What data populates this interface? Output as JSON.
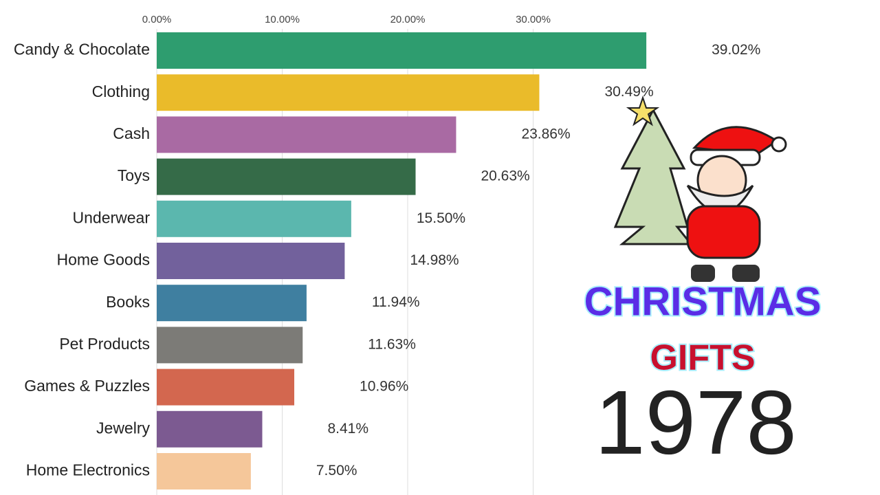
{
  "chart_data": {
    "type": "bar",
    "orientation": "horizontal",
    "title": "CHRISTMAS",
    "subtitle": "GIFTS",
    "annotations": [
      "1978"
    ],
    "categories": [
      "Candy & Chocolate",
      "Clothing",
      "Cash",
      "Toys",
      "Underwear",
      "Home Goods",
      "Books",
      "Pet Products",
      "Games & Puzzles",
      "Jewelry",
      "Home Electronics"
    ],
    "values": [
      39.02,
      30.49,
      23.86,
      20.63,
      15.5,
      14.98,
      11.94,
      11.63,
      10.96,
      8.41,
      7.5
    ],
    "value_labels": [
      "39.02%",
      "30.49%",
      "23.86%",
      "20.63%",
      "15.50%",
      "14.98%",
      "11.94%",
      "11.63%",
      "10.96%",
      "8.41%",
      "7.50%"
    ],
    "colors": [
      "#2e9d6f",
      "#eabb2a",
      "#a96aa3",
      "#356b48",
      "#5bb7ae",
      "#72619c",
      "#3f7fa0",
      "#7c7b77",
      "#d3674f",
      "#7c5a91",
      "#f5c79a"
    ],
    "xlim": [
      0,
      40
    ],
    "xticks": [
      {
        "value": 0,
        "label": "0.00%"
      },
      {
        "value": 10,
        "label": "10.00%"
      },
      {
        "value": 20,
        "label": "20.00%"
      },
      {
        "value": 30,
        "label": "30.00%"
      }
    ],
    "grid": true
  }
}
